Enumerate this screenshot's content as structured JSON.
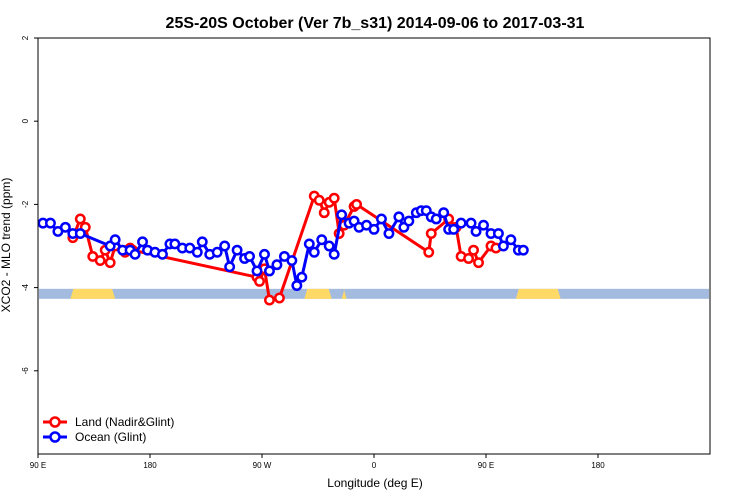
{
  "chart_data": {
    "type": "line",
    "title": "25S-20S October (Ver 7b_s31)   2014-09-06 to 2017-03-31",
    "xlabel": "Longitude (deg E)",
    "ylabel": "XCO2 - MLO trend (ppm)",
    "xlim": [
      -90,
      180
    ],
    "ylim": [
      -8,
      2
    ],
    "xticks": [
      {
        "value": -90,
        "label": "90 E"
      },
      {
        "value": -45,
        "label": "180"
      },
      {
        "value": 0,
        "label": "90 W"
      },
      {
        "value": 45,
        "label": "0"
      },
      {
        "value": 90,
        "label": "90 E"
      },
      {
        "value": 135,
        "label": "180"
      }
    ],
    "yticks": [
      {
        "value": 2,
        "label": "2"
      },
      {
        "value": 0,
        "label": "0"
      },
      {
        "value": -2,
        "label": "-2"
      },
      {
        "value": -4,
        "label": "-4"
      },
      {
        "value": -6,
        "label": "-6"
      }
    ],
    "grid": false,
    "legend_position": "bottom-left",
    "colors": {
      "land": "#ff0000",
      "ocean": "#0000ff",
      "land_strip": "#ffd966",
      "ocean_strip": "#a4bbe0"
    },
    "land_strip": {
      "y": -4.15,
      "land_ranges": [
        [
          -77,
          -59
        ],
        [
          17,
          28
        ],
        [
          32,
          34
        ],
        [
          102,
          120
        ]
      ]
    },
    "series": [
      {
        "name": "Land (Nadir&Glint)",
        "color": "#ff0000",
        "x": [
          -76,
          -73,
          -71,
          -68,
          -65,
          -63,
          -61,
          -59,
          -55,
          -54,
          -53,
          -52,
          -2,
          -1,
          1,
          3,
          7,
          21,
          23,
          25,
          27,
          29,
          31,
          33,
          37,
          38,
          67,
          68,
          75,
          78,
          80,
          83,
          85,
          87,
          92,
          94
        ],
        "y": [
          -2.8,
          -2.35,
          -2.55,
          -3.25,
          -3.35,
          -3.1,
          -3.4,
          -3.0,
          -3.15,
          -3.1,
          -3.05,
          -3.1,
          -3.75,
          -3.85,
          -3.55,
          -4.3,
          -4.25,
          -1.8,
          -1.9,
          -2.2,
          -1.95,
          -1.85,
          -2.7,
          -2.5,
          -2.05,
          -2.0,
          -3.15,
          -2.7,
          -2.35,
          -2.55,
          -3.25,
          -3.3,
          -3.1,
          -3.4,
          -3.0,
          -3.05
        ]
      },
      {
        "name": "Ocean (Glint)",
        "color": "#0000ff",
        "x": [
          -88,
          -85,
          -82,
          -79,
          -76,
          -73,
          -61,
          -59,
          -56,
          -53,
          -51,
          -48,
          -46,
          -43,
          -40,
          -37,
          -35,
          -32,
          -29,
          -26,
          -24,
          -21,
          -18,
          -15,
          -13,
          -10,
          -7,
          -5,
          -2,
          1,
          3,
          6,
          9,
          12,
          14,
          16,
          19,
          21,
          24,
          27,
          29,
          32,
          35,
          37,
          39,
          42,
          45,
          48,
          51,
          55,
          57,
          59,
          62,
          64,
          66,
          68,
          70,
          73,
          75,
          77,
          80,
          84,
          86,
          89,
          92,
          95,
          97,
          100,
          103,
          105
        ],
        "y": [
          -2.45,
          -2.45,
          -2.65,
          -2.55,
          -2.7,
          -2.7,
          -3.0,
          -2.85,
          -3.1,
          -3.1,
          -3.2,
          -2.9,
          -3.1,
          -3.15,
          -3.2,
          -2.95,
          -2.95,
          -3.05,
          -3.05,
          -3.15,
          -2.9,
          -3.2,
          -3.15,
          -3.0,
          -3.5,
          -3.1,
          -3.3,
          -3.25,
          -3.6,
          -3.2,
          -3.6,
          -3.45,
          -3.25,
          -3.35,
          -3.95,
          -3.75,
          -2.95,
          -3.15,
          -2.85,
          -3.0,
          -3.2,
          -2.25,
          -2.45,
          -2.4,
          -2.55,
          -2.5,
          -2.6,
          -2.35,
          -2.7,
          -2.3,
          -2.55,
          -2.4,
          -2.2,
          -2.15,
          -2.15,
          -2.3,
          -2.35,
          -2.2,
          -2.6,
          -2.6,
          -2.45,
          -2.45,
          -2.65,
          -2.5,
          -2.7,
          -2.7,
          -3.0,
          -2.85,
          -3.1,
          -3.1
        ]
      }
    ]
  }
}
